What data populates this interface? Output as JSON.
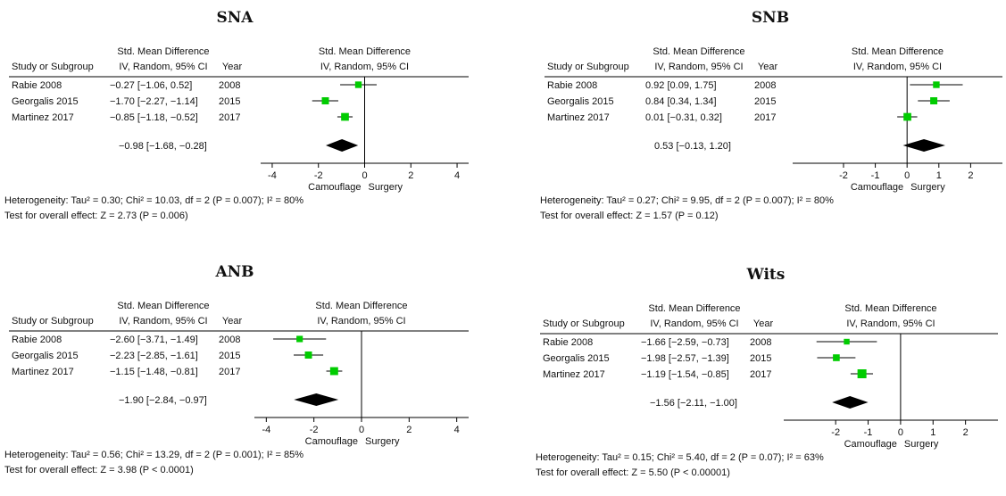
{
  "headers": {
    "smd": "Std. Mean Difference",
    "study": "Study or Subgroup",
    "method": "IV, Random, 95% CI",
    "year": "Year"
  },
  "axis_labels": {
    "left": "Camouflage",
    "right": "Surgery"
  },
  "colors": {
    "marker": "#00cc00",
    "diamond": "#000000",
    "line": "#000000"
  },
  "chart_data": [
    {
      "type": "forest",
      "title": "SNA",
      "xlim": [
        -4.5,
        4.5
      ],
      "ticks": [
        -4,
        -2,
        0,
        2,
        4
      ],
      "tick_labels": [
        "-4",
        "-2",
        "0",
        "2",
        "4"
      ],
      "studies": [
        {
          "name": "Rabie 2008",
          "ci_text": "−0.27 [−1.06, 0.52]",
          "year": "2008",
          "est": -0.27,
          "lo": -1.06,
          "hi": 0.52,
          "weight": 0.28
        },
        {
          "name": "Georgalis 2015",
          "ci_text": "−1.70 [−2.27, −1.14]",
          "year": "2015",
          "est": -1.7,
          "lo": -2.27,
          "hi": -1.14,
          "weight": 0.33
        },
        {
          "name": "Martinez 2017",
          "ci_text": "−0.85 [−1.18, −0.52]",
          "year": "2017",
          "est": -0.85,
          "lo": -1.18,
          "hi": -0.52,
          "weight": 0.39
        }
      ],
      "total": {
        "ci_text": "−0.98 [−1.68, −0.28]",
        "est": -0.98,
        "lo": -1.68,
        "hi": -0.28
      },
      "heterogeneity": "Heterogeneity: Tau² = 0.30; Chi² = 10.03, df = 2 (P = 0.007); I² = 80%",
      "overall": "Test for overall effect: Z = 2.73 (P = 0.006)"
    },
    {
      "type": "forest",
      "title": "SNB",
      "xlim": [
        -3.6,
        3.0
      ],
      "ticks": [
        -2,
        -1,
        0,
        1,
        2
      ],
      "tick_labels": [
        "-2",
        "-1",
        "0",
        "1",
        "2"
      ],
      "studies": [
        {
          "name": "Rabie 2008",
          "ci_text": "0.92 [0.09, 1.75]",
          "year": "2008",
          "est": 0.92,
          "lo": 0.09,
          "hi": 1.75,
          "weight": 0.28
        },
        {
          "name": "Georgalis 2015",
          "ci_text": "0.84 [0.34, 1.34]",
          "year": "2015",
          "est": 0.84,
          "lo": 0.34,
          "hi": 1.34,
          "weight": 0.33
        },
        {
          "name": "Martinez 2017",
          "ci_text": "0.01 [−0.31, 0.32]",
          "year": "2017",
          "est": 0.01,
          "lo": -0.31,
          "hi": 0.32,
          "weight": 0.39
        }
      ],
      "total": {
        "ci_text": "0.53 [−0.13, 1.20]",
        "est": 0.53,
        "lo": -0.13,
        "hi": 1.2
      },
      "heterogeneity": "Heterogeneity: Tau² = 0.27; Chi² = 9.95, df = 2 (P = 0.007); I² = 80%",
      "overall": "Test for overall effect: Z = 1.57 (P = 0.12)"
    },
    {
      "type": "forest",
      "title": "ANB",
      "xlim": [
        -4.5,
        4.5
      ],
      "ticks": [
        -4,
        -2,
        0,
        2,
        4
      ],
      "tick_labels": [
        "-4",
        "-2",
        "0",
        "2",
        "4"
      ],
      "studies": [
        {
          "name": "Rabie 2008",
          "ci_text": "−2.60 [−3.71, −1.49]",
          "year": "2008",
          "est": -2.6,
          "lo": -3.71,
          "hi": -1.49,
          "weight": 0.26
        },
        {
          "name": "Georgalis 2015",
          "ci_text": "−2.23 [−2.85, −1.61]",
          "year": "2015",
          "est": -2.23,
          "lo": -2.85,
          "hi": -1.61,
          "weight": 0.33
        },
        {
          "name": "Martinez 2017",
          "ci_text": "−1.15 [−1.48, −0.81]",
          "year": "2017",
          "est": -1.15,
          "lo": -1.48,
          "hi": -0.81,
          "weight": 0.41
        }
      ],
      "total": {
        "ci_text": "−1.90 [−2.84, −0.97]",
        "est": -1.9,
        "lo": -2.84,
        "hi": -0.97
      },
      "heterogeneity": "Heterogeneity: Tau² = 0.56; Chi² = 13.29, df = 2 (P = 0.001); I² = 85%",
      "overall": "Test for overall effect: Z = 3.98 (P < 0.0001)"
    },
    {
      "type": "forest",
      "title": "Wits",
      "xlim": [
        -3.6,
        3.0
      ],
      "ticks": [
        -2,
        -1,
        0,
        1,
        2
      ],
      "tick_labels": [
        "-2",
        "-1",
        "0",
        "1",
        "2"
      ],
      "studies": [
        {
          "name": "Rabie 2008",
          "ci_text": "−1.66 [−2.59, −0.73]",
          "year": "2008",
          "est": -1.66,
          "lo": -2.59,
          "hi": -0.73,
          "weight": 0.2
        },
        {
          "name": "Georgalis 2015",
          "ci_text": "−1.98 [−2.57, −1.39]",
          "year": "2015",
          "est": -1.98,
          "lo": -2.57,
          "hi": -1.39,
          "weight": 0.3
        },
        {
          "name": "Martinez 2017",
          "ci_text": "−1.19 [−1.54, −0.85]",
          "year": "2017",
          "est": -1.19,
          "lo": -1.54,
          "hi": -0.85,
          "weight": 0.5
        }
      ],
      "total": {
        "ci_text": "−1.56 [−2.11, −1.00]",
        "est": -1.56,
        "lo": -2.11,
        "hi": -1.0
      },
      "heterogeneity": "Heterogeneity: Tau² = 0.15; Chi² = 5.40, df = 2 (P = 0.07); I² = 63%",
      "overall": "Test for overall effect: Z = 5.50 (P < 0.00001)"
    }
  ]
}
